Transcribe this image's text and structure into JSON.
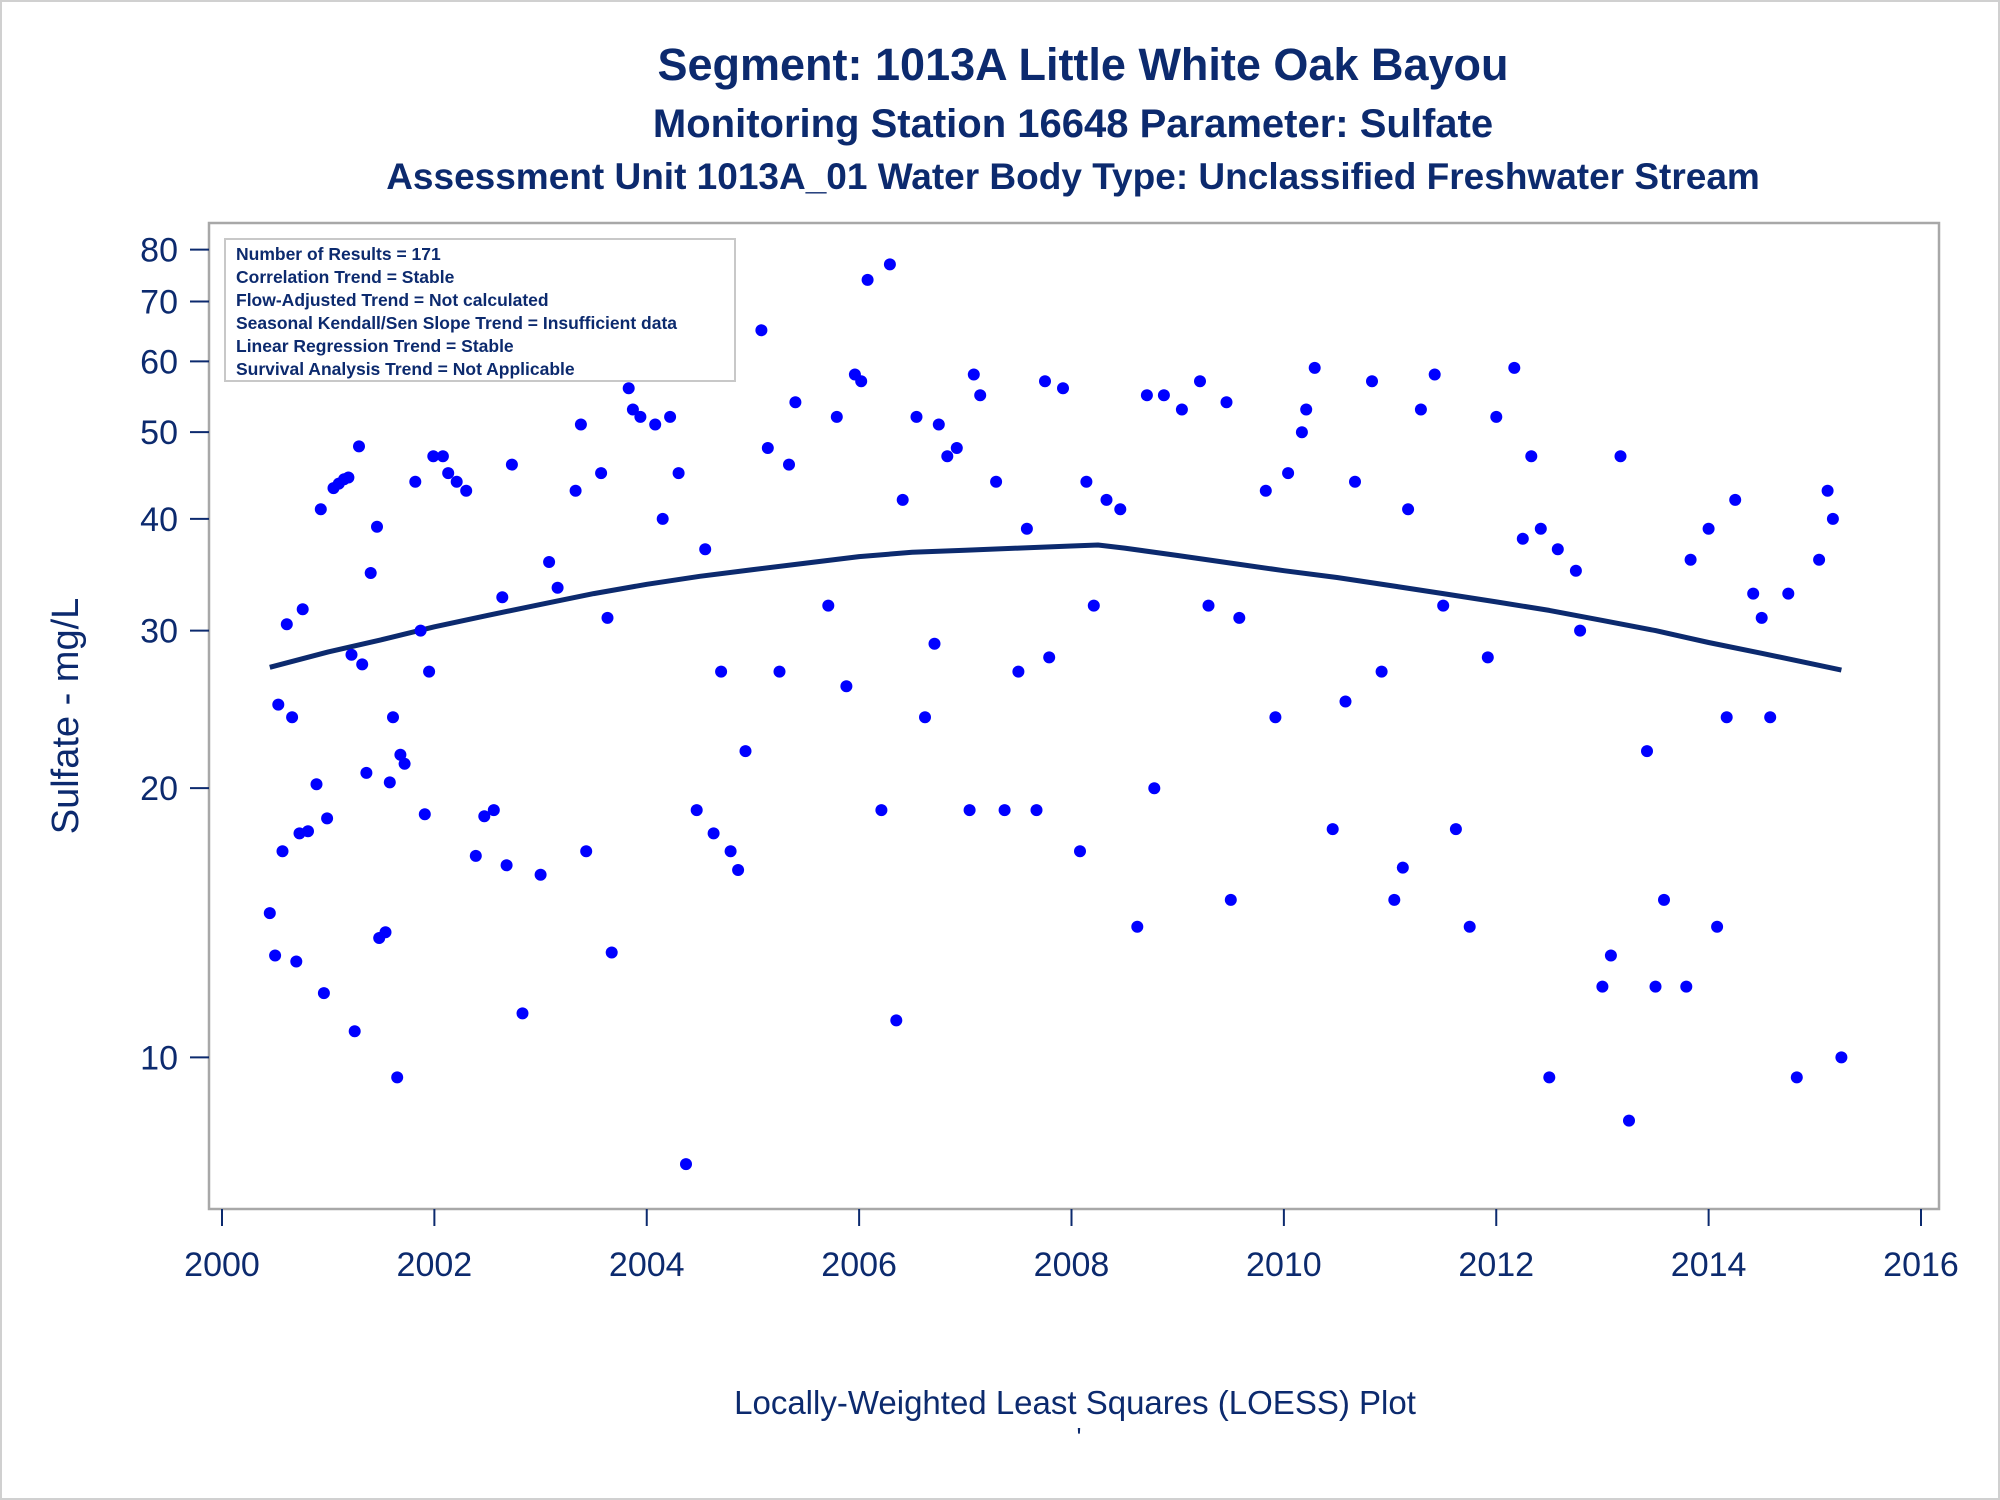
{
  "chart_data": {
    "type": "scatter",
    "title": "Segment: 1013A  Little White Oak Bayou",
    "subtitle": "Monitoring Station 16648 Parameter: Sulfate",
    "subtitle2": "Assessment Unit 1013A_01   Water Body Type: Unclassified Freshwater Stream",
    "xlabel": "",
    "ylabel": "Sulfate - mg/L",
    "footnote": "Locally-Weighted Least Squares (LOESS) Plot",
    "footnote_mark": "'",
    "y_scale": "log",
    "xlim": [
      2000,
      2016
    ],
    "ylim": [
      7,
      82
    ],
    "x_ticks": [
      "2000",
      "2002",
      "2004",
      "2006",
      "2008",
      "2010",
      "2012",
      "2014",
      "2016"
    ],
    "y_ticks": [
      "10",
      "20",
      "30",
      "40",
      "50",
      "60",
      "70",
      "80"
    ],
    "grid": false,
    "legend_position": "top-left",
    "stats": [
      "Number of Results = 171",
      "Correlation Trend = Stable",
      "Flow-Adjusted Trend = Not calculated",
      "Seasonal Kendall/Sen Slope Trend = Insufficient data",
      "Linear Regression Trend = Stable",
      "Survival Analysis Trend = Not Applicable"
    ],
    "colors": {
      "points": "#0000ff",
      "loess": "#0c2a6e",
      "text": "#0c2a6e",
      "frame": "#a8a8a8"
    },
    "points": [
      [
        2000.45,
        14.5
      ],
      [
        2000.5,
        13
      ],
      [
        2000.53,
        24.8
      ],
      [
        2000.57,
        17
      ],
      [
        2000.61,
        30.5
      ],
      [
        2000.66,
        24
      ],
      [
        2000.7,
        12.8
      ],
      [
        2000.73,
        17.8
      ],
      [
        2000.76,
        31.7
      ],
      [
        2000.81,
        17.9
      ],
      [
        2000.89,
        20.2
      ],
      [
        2000.93,
        41
      ],
      [
        2000.96,
        11.8
      ],
      [
        2000.99,
        18.5
      ],
      [
        2001.05,
        43.3
      ],
      [
        2001.1,
        43.8
      ],
      [
        2001.15,
        44.3
      ],
      [
        2001.19,
        44.5
      ],
      [
        2001.22,
        28.2
      ],
      [
        2001.25,
        10.7
      ],
      [
        2001.29,
        48.2
      ],
      [
        2001.32,
        27.5
      ],
      [
        2001.36,
        20.8
      ],
      [
        2001.4,
        34.8
      ],
      [
        2001.46,
        39.2
      ],
      [
        2001.48,
        13.6
      ],
      [
        2001.54,
        13.8
      ],
      [
        2001.58,
        20.3
      ],
      [
        2001.61,
        24
      ],
      [
        2001.65,
        9.5
      ],
      [
        2001.68,
        21.8
      ],
      [
        2001.72,
        21.3
      ],
      [
        2001.82,
        44
      ],
      [
        2001.87,
        30
      ],
      [
        2001.91,
        18.7
      ],
      [
        2001.95,
        27
      ],
      [
        2001.99,
        47
      ],
      [
        2002.08,
        47
      ],
      [
        2002.13,
        45
      ],
      [
        2002.21,
        44
      ],
      [
        2002.3,
        43
      ],
      [
        2002.39,
        16.8
      ],
      [
        2002.47,
        18.6
      ],
      [
        2002.56,
        18.9
      ],
      [
        2002.64,
        32.7
      ],
      [
        2002.68,
        16.4
      ],
      [
        2002.73,
        46
      ],
      [
        2002.83,
        11.2
      ],
      [
        2003.0,
        16
      ],
      [
        2003.08,
        35.8
      ],
      [
        2003.16,
        33.5
      ],
      [
        2003.33,
        43
      ],
      [
        2003.38,
        51
      ],
      [
        2003.43,
        17
      ],
      [
        2003.57,
        45
      ],
      [
        2003.63,
        31
      ],
      [
        2003.67,
        13.1
      ],
      [
        2003.83,
        56
      ],
      [
        2003.87,
        53
      ],
      [
        2003.94,
        52
      ],
      [
        2004.08,
        51
      ],
      [
        2004.15,
        40
      ],
      [
        2004.22,
        52
      ],
      [
        2004.3,
        45
      ],
      [
        2004.37,
        7.6
      ],
      [
        2004.47,
        18.9
      ],
      [
        2004.55,
        37
      ],
      [
        2004.63,
        17.8
      ],
      [
        2004.7,
        27
      ],
      [
        2004.79,
        17
      ],
      [
        2004.86,
        16.2
      ],
      [
        2004.93,
        22
      ],
      [
        2005.08,
        65
      ],
      [
        2005.14,
        48
      ],
      [
        2005.25,
        27
      ],
      [
        2005.34,
        46
      ],
      [
        2005.4,
        54
      ],
      [
        2005.71,
        32
      ],
      [
        2005.79,
        52
      ],
      [
        2005.88,
        26
      ],
      [
        2005.96,
        58
      ],
      [
        2006.02,
        57
      ],
      [
        2006.08,
        74
      ],
      [
        2006.29,
        77
      ],
      [
        2006.21,
        18.9
      ],
      [
        2006.35,
        11
      ],
      [
        2006.41,
        42
      ],
      [
        2006.54,
        52
      ],
      [
        2006.62,
        24
      ],
      [
        2006.71,
        29
      ],
      [
        2006.75,
        51
      ],
      [
        2006.83,
        47
      ],
      [
        2006.92,
        48
      ],
      [
        2007.04,
        18.9
      ],
      [
        2007.08,
        58
      ],
      [
        2007.14,
        55
      ],
      [
        2007.29,
        44
      ],
      [
        2007.37,
        18.9
      ],
      [
        2007.5,
        27
      ],
      [
        2007.58,
        39
      ],
      [
        2007.67,
        18.9
      ],
      [
        2007.75,
        57
      ],
      [
        2007.79,
        28
      ],
      [
        2007.92,
        56
      ],
      [
        2008.08,
        17
      ],
      [
        2008.14,
        44
      ],
      [
        2008.21,
        32
      ],
      [
        2008.33,
        42
      ],
      [
        2008.46,
        41
      ],
      [
        2008.62,
        14
      ],
      [
        2008.71,
        55
      ],
      [
        2008.78,
        20
      ],
      [
        2008.87,
        55
      ],
      [
        2009.04,
        53
      ],
      [
        2009.21,
        57
      ],
      [
        2009.29,
        32
      ],
      [
        2009.46,
        54
      ],
      [
        2009.5,
        15
      ],
      [
        2009.58,
        31
      ],
      [
        2009.83,
        43
      ],
      [
        2009.92,
        24
      ],
      [
        2010.04,
        45
      ],
      [
        2010.17,
        50
      ],
      [
        2010.21,
        53
      ],
      [
        2010.29,
        59
      ],
      [
        2010.46,
        18
      ],
      [
        2010.58,
        25
      ],
      [
        2010.67,
        44
      ],
      [
        2010.83,
        57
      ],
      [
        2010.92,
        27
      ],
      [
        2011.04,
        15
      ],
      [
        2011.12,
        16.3
      ],
      [
        2011.17,
        41
      ],
      [
        2011.29,
        53
      ],
      [
        2011.42,
        58
      ],
      [
        2011.5,
        32
      ],
      [
        2011.62,
        18
      ],
      [
        2011.75,
        14
      ],
      [
        2011.92,
        28
      ],
      [
        2012.0,
        52
      ],
      [
        2012.17,
        59
      ],
      [
        2012.25,
        38
      ],
      [
        2012.33,
        47
      ],
      [
        2012.42,
        39
      ],
      [
        2012.5,
        9.5
      ],
      [
        2012.58,
        37
      ],
      [
        2012.75,
        35
      ],
      [
        2012.79,
        30
      ],
      [
        2013.0,
        12
      ],
      [
        2013.08,
        13
      ],
      [
        2013.17,
        47
      ],
      [
        2013.25,
        8.5
      ],
      [
        2013.42,
        22
      ],
      [
        2013.5,
        12
      ],
      [
        2013.58,
        15
      ],
      [
        2013.79,
        12
      ],
      [
        2013.83,
        36
      ],
      [
        2014.0,
        39
      ],
      [
        2014.08,
        14
      ],
      [
        2014.17,
        24
      ],
      [
        2014.25,
        42
      ],
      [
        2014.42,
        33
      ],
      [
        2014.5,
        31
      ],
      [
        2014.58,
        24
      ],
      [
        2014.75,
        33
      ],
      [
        2014.83,
        9.5
      ],
      [
        2015.04,
        36
      ],
      [
        2015.12,
        43
      ],
      [
        2015.17,
        40
      ],
      [
        2015.25,
        10
      ]
    ],
    "loess_curve": [
      [
        2000.45,
        27.3
      ],
      [
        2001.0,
        28.4
      ],
      [
        2001.5,
        29.3
      ],
      [
        2002.0,
        30.3
      ],
      [
        2002.5,
        31.2
      ],
      [
        2003.0,
        32.1
      ],
      [
        2003.5,
        33
      ],
      [
        2004.0,
        33.8
      ],
      [
        2004.5,
        34.5
      ],
      [
        2005.0,
        35.1
      ],
      [
        2005.5,
        35.7
      ],
      [
        2006.0,
        36.3
      ],
      [
        2006.5,
        36.7
      ],
      [
        2007.0,
        36.9
      ],
      [
        2007.5,
        37.1
      ],
      [
        2008.0,
        37.3
      ],
      [
        2008.25,
        37.4
      ],
      [
        2008.5,
        37.1
      ],
      [
        2009.0,
        36.4
      ],
      [
        2009.5,
        35.7
      ],
      [
        2010.0,
        35
      ],
      [
        2010.5,
        34.4
      ],
      [
        2011.0,
        33.7
      ],
      [
        2011.5,
        33
      ],
      [
        2012.0,
        32.3
      ],
      [
        2012.5,
        31.6
      ],
      [
        2013.0,
        30.8
      ],
      [
        2013.5,
        30
      ],
      [
        2014.0,
        29.1
      ],
      [
        2014.5,
        28.3
      ],
      [
        2015.0,
        27.5
      ],
      [
        2015.25,
        27.1
      ]
    ]
  }
}
